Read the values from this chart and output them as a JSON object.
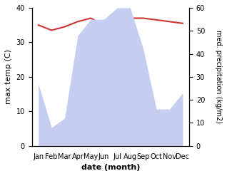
{
  "months": [
    "Jan",
    "Feb",
    "Mar",
    "Apr",
    "May",
    "Jun",
    "Jul",
    "Aug",
    "Sep",
    "Oct",
    "Nov",
    "Dec"
  ],
  "temp": [
    35.0,
    33.5,
    34.5,
    36.0,
    37.0,
    35.0,
    36.0,
    37.0,
    37.0,
    36.5,
    36.0,
    35.5
  ],
  "precip": [
    27,
    8,
    12,
    48,
    55,
    55,
    60,
    60,
    42,
    16,
    16,
    23
  ],
  "temp_color": "#cc3333",
  "precip_fill_color": "#c5cef0",
  "precip_edge_color": "#aabbee",
  "left_ylabel": "max temp (C)",
  "right_ylabel": "med. precipitation (kg/m2)",
  "xlabel": "date (month)",
  "ylim_left": [
    0,
    40
  ],
  "ylim_right": [
    0,
    60
  ],
  "yticks_left": [
    0,
    10,
    20,
    30,
    40
  ],
  "yticks_right": [
    0,
    10,
    20,
    30,
    40,
    50,
    60
  ],
  "bg_color": "#ffffff"
}
